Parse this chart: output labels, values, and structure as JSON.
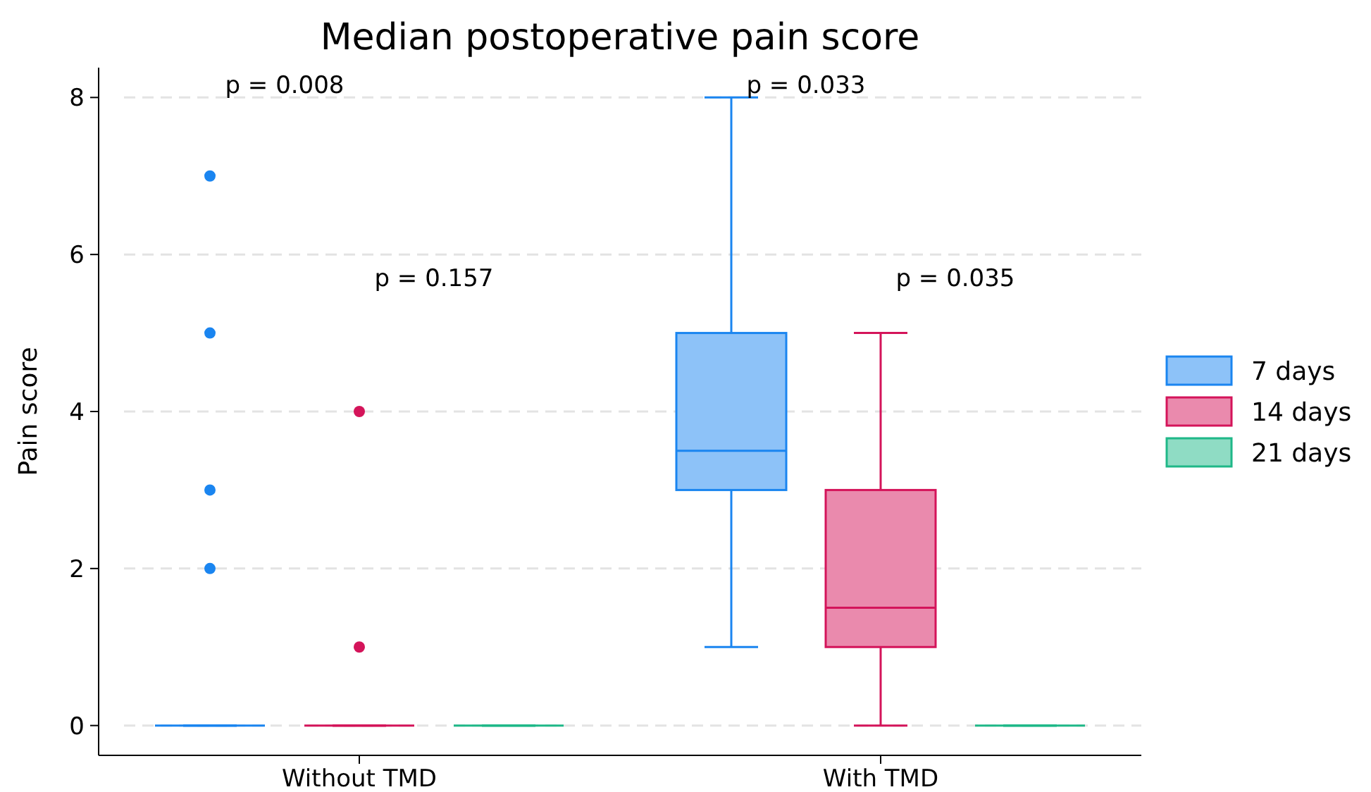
{
  "chart_data": {
    "type": "box",
    "title": "Median postoperative pain score",
    "ylabel": "Pain score",
    "categories": [
      "Without TMD",
      "With TMD"
    ],
    "series": [
      {
        "name": "7 days",
        "color": "#1a85f0",
        "boxes": [
          {
            "low": 0,
            "q1": 0,
            "median": 0,
            "q3": 0,
            "high": 0,
            "outliers": [
              2,
              3,
              5,
              7
            ]
          },
          {
            "low": 1,
            "q1": 3,
            "median": 3.5,
            "q3": 5,
            "high": 8
          }
        ]
      },
      {
        "name": "14 days",
        "color": "#d4145a",
        "boxes": [
          {
            "low": 0,
            "q1": 0,
            "median": 0,
            "q3": 0,
            "high": 0,
            "outliers": [
              1,
              4
            ]
          },
          {
            "low": 0,
            "q1": 1,
            "median": 1.5,
            "q3": 3,
            "high": 5
          }
        ]
      },
      {
        "name": "21 days",
        "color": "#1fb888",
        "boxes": [
          {
            "low": 0,
            "q1": 0,
            "median": 0,
            "q3": 0,
            "high": 0
          },
          {
            "low": 0,
            "q1": 0,
            "median": 0,
            "q3": 0,
            "high": 0
          }
        ]
      }
    ],
    "annotations": [
      "p = 0.008",
      "p = 0.157",
      "p = 0.033",
      "p = 0.035"
    ],
    "ylim": [
      -0.38,
      8.38
    ],
    "yticks": [
      0,
      2,
      4,
      6,
      8
    ],
    "grid": "y",
    "legend": "right"
  }
}
